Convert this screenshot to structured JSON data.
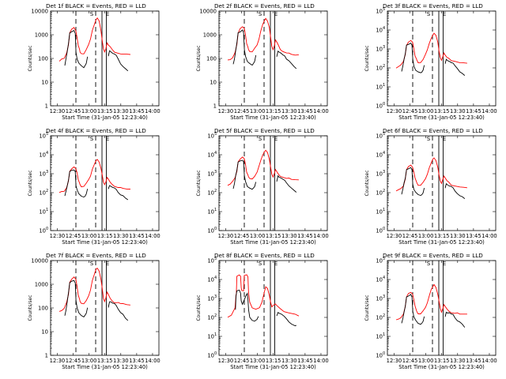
{
  "figure": {
    "background": "#ffffff",
    "colors": {
      "events": "#000000",
      "lld": "#ff0000",
      "axes": "#000000"
    }
  },
  "chart_data": [
    {
      "type": "line",
      "title": "Det 1f BLACK = Events, RED = LLD",
      "ylabel": "Counts/sec",
      "xlabel": "Start Time (31-Jan-05 12:23:40)",
      "yscale": "log",
      "ylim": [
        1,
        10000
      ],
      "ytick_style": "plain",
      "yticks": [
        "1",
        "10",
        "100",
        "1000",
        "10000"
      ],
      "xticks": [
        "12:30",
        "12:45",
        "13:00",
        "13:15",
        "13:30",
        "13:45",
        "14:00"
      ],
      "xlim": [
        "12:23:40",
        "14:06:00"
      ],
      "markers": [
        "S",
        "E"
      ],
      "series": [
        {
          "name": "Events",
          "color": "#000000"
        },
        {
          "name": "LLD",
          "color": "#ff0000"
        }
      ],
      "variant": "a"
    },
    {
      "type": "line",
      "title": "Det 2f BLACK = Events, RED = LLD",
      "ylabel": "Counts/sec",
      "xlabel": "Start Time (31-Jan-05 12:23:40)",
      "yscale": "log",
      "ylim": [
        1,
        10000
      ],
      "ytick_style": "plain",
      "yticks": [
        "1",
        "10",
        "100",
        "1000",
        "10000"
      ],
      "xticks": [
        "12:30",
        "12:45",
        "13:00",
        "13:15",
        "13:30",
        "13:45",
        "14:00"
      ],
      "xlim": [
        "12:23:40",
        "14:06:00"
      ],
      "markers": [
        "S",
        "E"
      ],
      "series": [
        {
          "name": "Events",
          "color": "#000000"
        },
        {
          "name": "LLD",
          "color": "#ff0000"
        }
      ],
      "variant": "a"
    },
    {
      "type": "line",
      "title": "Det 3f BLACK = Events, RED = LLD",
      "ylabel": "Counts/sec",
      "xlabel": "Start Time (31-Jan-05 12:23:40)",
      "yscale": "log",
      "ylim": [
        1,
        100000
      ],
      "ytick_style": "exp",
      "yticks": [
        "10^0",
        "10^1",
        "10^2",
        "10^3",
        "10^4",
        "10^5"
      ],
      "xticks": [
        "12:30",
        "12:45",
        "13:00",
        "13:15",
        "13:30",
        "13:45",
        "14:00"
      ],
      "xlim": [
        "12:23:40",
        "14:06:00"
      ],
      "markers": [
        "S",
        "E"
      ],
      "series": [
        {
          "name": "Events",
          "color": "#000000"
        },
        {
          "name": "LLD",
          "color": "#ff0000"
        }
      ],
      "variant": "a"
    },
    {
      "type": "line",
      "title": "Det 4f BLACK = Events, RED = LLD",
      "ylabel": "Counts/sec",
      "xlabel": "Start Time (31-Jan-05 12:23:40)",
      "yscale": "log",
      "ylim": [
        1,
        100000
      ],
      "ytick_style": "exp",
      "yticks": [
        "10^0",
        "10^1",
        "10^2",
        "10^3",
        "10^4",
        "10^5"
      ],
      "xticks": [
        "12:30",
        "12:45",
        "13:00",
        "13:15",
        "13:30",
        "13:45",
        "14:00"
      ],
      "xlim": [
        "12:23:40",
        "14:06:00"
      ],
      "markers": [
        "S",
        "E"
      ],
      "series": [
        {
          "name": "Events",
          "color": "#000000"
        },
        {
          "name": "LLD",
          "color": "#ff0000"
        }
      ],
      "variant": "a"
    },
    {
      "type": "line",
      "title": "Det 5f BLACK = Events, RED = LLD",
      "ylabel": "Counts/sec",
      "xlabel": "Start Time (31-Jan-05 12:23:40)",
      "yscale": "log",
      "ylim": [
        1,
        100000
      ],
      "ytick_style": "exp",
      "yticks": [
        "10^0",
        "10^1",
        "10^2",
        "10^3",
        "10^4",
        "10^5"
      ],
      "xticks": [
        "12:30",
        "12:45",
        "13:00",
        "13:15",
        "13:30",
        "13:45",
        "14:00"
      ],
      "xlim": [
        "12:23:40",
        "14:06:00"
      ],
      "markers": [
        "S",
        "E"
      ],
      "series": [
        {
          "name": "Events",
          "color": "#000000"
        },
        {
          "name": "LLD",
          "color": "#ff0000"
        }
      ],
      "variant": "b"
    },
    {
      "type": "line",
      "title": "Det 6f BLACK = Events, RED = LLD",
      "ylabel": "Counts/sec",
      "xlabel": "Start Time (31-Jan-05 12:23:40)",
      "yscale": "log",
      "ylim": [
        1,
        100000
      ],
      "ytick_style": "exp",
      "yticks": [
        "10^0",
        "10^1",
        "10^2",
        "10^3",
        "10^4",
        "10^5"
      ],
      "xticks": [
        "12:30",
        "12:45",
        "13:00",
        "13:15",
        "13:30",
        "13:45",
        "14:00"
      ],
      "xlim": [
        "12:23:40",
        "14:06:00"
      ],
      "markers": [
        "S",
        "E"
      ],
      "series": [
        {
          "name": "Events",
          "color": "#000000"
        },
        {
          "name": "LLD",
          "color": "#ff0000"
        }
      ],
      "variant": "a"
    },
    {
      "type": "line",
      "title": "Det 7f BLACK = Events, RED = LLD",
      "ylabel": "Counts/sec",
      "xlabel": "Start Time (31-Jan-05 12:23:40)",
      "yscale": "log",
      "ylim": [
        1,
        10000
      ],
      "ytick_style": "plain",
      "yticks": [
        "1",
        "10",
        "100",
        "1000",
        "10000"
      ],
      "xticks": [
        "12:30",
        "12:45",
        "13:00",
        "13:15",
        "13:30",
        "13:45",
        "14:00"
      ],
      "xlim": [
        "12:23:40",
        "14:06:00"
      ],
      "markers": [
        "S",
        "E"
      ],
      "series": [
        {
          "name": "Events",
          "color": "#000000"
        },
        {
          "name": "LLD",
          "color": "#ff0000"
        }
      ],
      "variant": "a"
    },
    {
      "type": "line",
      "title": "Det 8f BLACK = Events, RED = LLD",
      "ylabel": "Counts/sec",
      "xlabel": "Start Time (31-Jan-05 12:23:40)",
      "yscale": "log",
      "ylim": [
        1,
        100000
      ],
      "ytick_style": "exp",
      "yticks": [
        "10^0",
        "10^1",
        "10^2",
        "10^3",
        "10^4",
        "10^5"
      ],
      "xticks": [
        "12:30",
        "12:45",
        "13:00",
        "13:15",
        "13:30",
        "13:45",
        "14:00"
      ],
      "xlim": [
        "12:23:40",
        "14:06:00"
      ],
      "markers": [
        "S",
        "E"
      ],
      "series": [
        {
          "name": "Events",
          "color": "#000000"
        },
        {
          "name": "LLD",
          "color": "#ff0000"
        }
      ],
      "variant": "c"
    },
    {
      "type": "line",
      "title": "Det 9f BLACK = Events, RED = LLD",
      "ylabel": "Counts/sec",
      "xlabel": "Start Time (31-Jan-05 12:23:40)",
      "yscale": "log",
      "ylim": [
        1,
        100000
      ],
      "ytick_style": "exp",
      "yticks": [
        "10^0",
        "10^1",
        "10^2",
        "10^3",
        "10^4",
        "10^5"
      ],
      "xticks": [
        "12:30",
        "12:45",
        "13:00",
        "13:15",
        "13:30",
        "13:45",
        "14:00"
      ],
      "xlim": [
        "12:23:40",
        "14:06:00"
      ],
      "markers": [
        "S",
        "E"
      ],
      "series": [
        {
          "name": "Events",
          "color": "#000000"
        },
        {
          "name": "LLD",
          "color": "#ff0000"
        }
      ],
      "variant": "a"
    }
  ]
}
